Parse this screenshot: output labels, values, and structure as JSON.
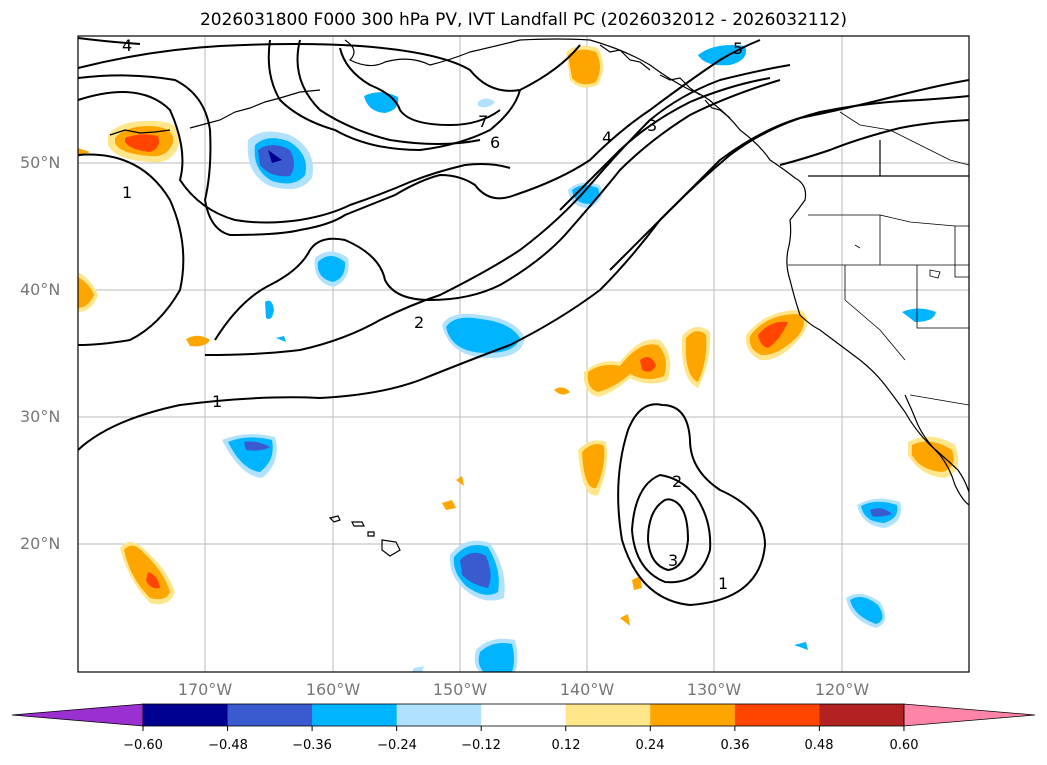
{
  "title": "2026031800 F000 300 hPa PV, IVT Landfall PC (2026032012 - 2026032112)",
  "lat_labels": [
    "50°N",
    "40°N",
    "30°N",
    "20°N"
  ],
  "lon_labels": [
    "170°W",
    "160°W",
    "150°W",
    "140°W",
    "130°W",
    "120°W"
  ],
  "contour_labels": [
    "4",
    "1",
    "6",
    "7",
    "5",
    "4",
    "3",
    "2",
    "1",
    "2",
    "3",
    "1"
  ],
  "colorbar": {
    "ticks": [
      "−0.60",
      "−0.48",
      "−0.36",
      "−0.24",
      "−0.12",
      "0.12",
      "0.24",
      "0.36",
      "0.48",
      "0.60"
    ],
    "colors": [
      "#9b30d0",
      "#000090",
      "#3a5bd0",
      "#00b4ff",
      "#b0e2ff",
      "#ffffff",
      "#ffe68a",
      "#ffa500",
      "#ff4500",
      "#b22222",
      "#ff85a8"
    ]
  },
  "colors": {
    "neg_light": "#b0e2ff",
    "neg_mid": "#00b4ff",
    "neg_strong": "#3a5bd0",
    "neg_deep": "#000090",
    "pos_light": "#ffe68a",
    "pos_mid": "#ffa500",
    "pos_strong": "#ff4500"
  }
}
